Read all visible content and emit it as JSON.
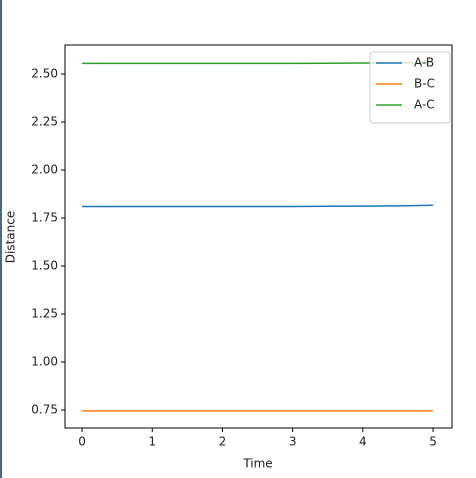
{
  "chart_data": {
    "type": "line",
    "x_label": "Time",
    "y_label": "Distance",
    "x": [
      0,
      0.5,
      1,
      1.5,
      2,
      2.5,
      3,
      3.5,
      4,
      4.5,
      5
    ],
    "series": [
      {
        "name": "A-B",
        "color": "#1f77b4",
        "values": [
          1.81,
          1.81,
          1.81,
          1.81,
          1.81,
          1.81,
          1.81,
          1.811,
          1.812,
          1.813,
          1.816
        ]
      },
      {
        "name": "B-C",
        "color": "#ff7f0e",
        "values": [
          0.745,
          0.745,
          0.745,
          0.745,
          0.745,
          0.745,
          0.745,
          0.745,
          0.745,
          0.745,
          0.745
        ]
      },
      {
        "name": "A-C",
        "color": "#2ca02c",
        "values": [
          2.555,
          2.555,
          2.555,
          2.555,
          2.555,
          2.555,
          2.555,
          2.556,
          2.557,
          2.558,
          2.56
        ]
      }
    ],
    "xlim": [
      -0.243,
      5.27
    ],
    "ylim": [
      0.656,
      2.651
    ],
    "xticks": [
      0,
      1,
      2,
      3,
      4,
      5
    ],
    "yticks": [
      {
        "value": 0.75,
        "label": "0.75"
      },
      {
        "value": 1.0,
        "label": "1.00"
      },
      {
        "value": 1.25,
        "label": "1.25"
      },
      {
        "value": 1.5,
        "label": "1.50"
      },
      {
        "value": 1.75,
        "label": "1.75"
      },
      {
        "value": 2.0,
        "label": "2.00"
      },
      {
        "value": 2.25,
        "label": "2.25"
      },
      {
        "value": 2.5,
        "label": "2.50"
      }
    ],
    "legend": "upper right"
  }
}
